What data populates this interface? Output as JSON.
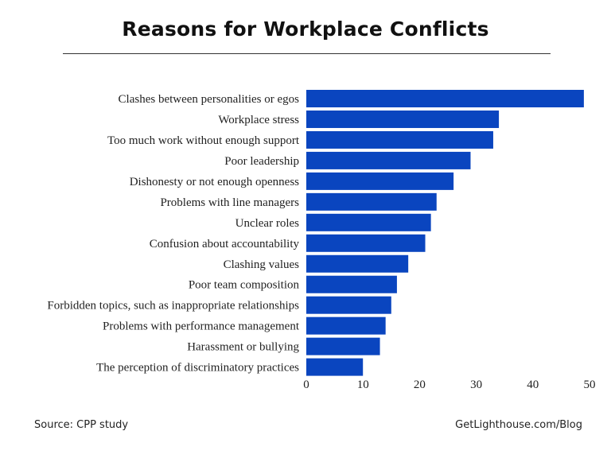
{
  "chart_data": {
    "type": "bar",
    "orientation": "horizontal",
    "title": "Reasons for Workplace Conflicts",
    "categories": [
      "Clashes between personalities or egos",
      "Workplace stress",
      "Too much work without enough support",
      "Poor leadership",
      "Dishonesty or not enough openness",
      "Problems with line managers",
      "Unclear roles",
      "Confusion about accountability",
      "Clashing values",
      "Poor team composition",
      "Forbidden topics, such as inappropriate relationships",
      "Problems with performance management",
      "Harassment or bullying",
      "The perception of discriminatory practices"
    ],
    "values": [
      49,
      34,
      33,
      29,
      26,
      23,
      22,
      21,
      18,
      16,
      15,
      14,
      13,
      10
    ],
    "xlim": [
      0,
      50
    ],
    "xticks": [
      "0",
      "10",
      "20",
      "30",
      "40",
      "50"
    ],
    "grid": false,
    "bar_color": "#0a45bf"
  },
  "footer": {
    "source": "Source: CPP study",
    "credit": "GetLighthouse.com/Blog"
  }
}
